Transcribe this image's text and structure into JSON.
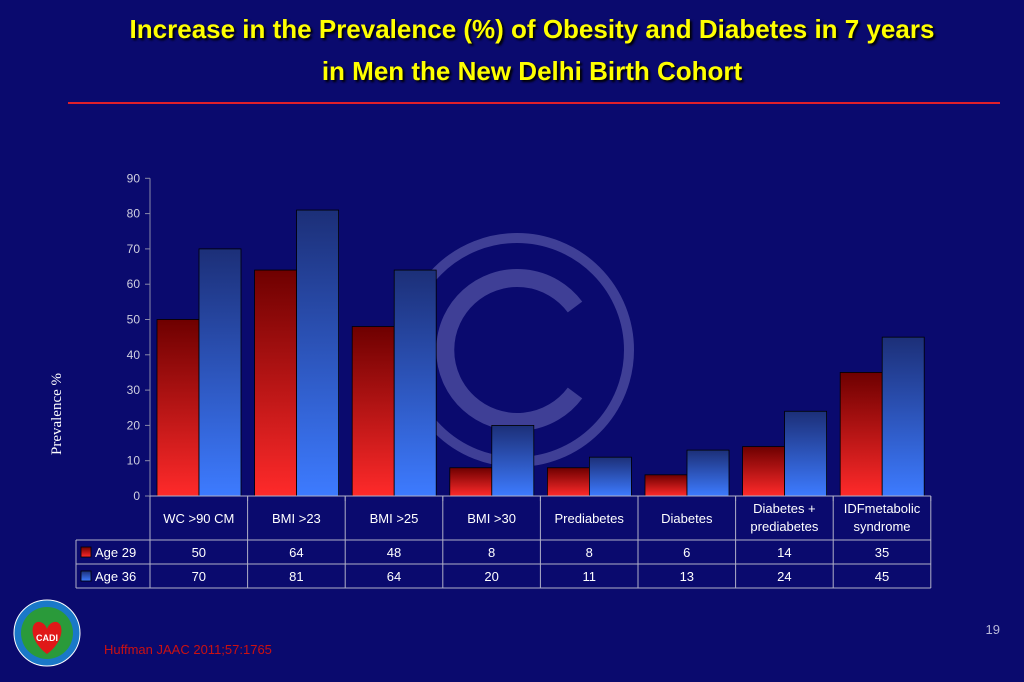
{
  "slide": {
    "title_line1": "Increase in the Prevalence (%) of Obesity and Diabetes  in 7 years",
    "title_line2": "in Men the New Delhi Birth Cohort",
    "page_number": "19",
    "citation": "Huffman  JAAC 2011;57:1765",
    "logo_text": "CADI"
  },
  "chart_data": {
    "type": "bar",
    "title": "",
    "xlabel": "",
    "ylabel": "Prevalence %",
    "ylim": [
      0,
      90
    ],
    "yticks": [
      0,
      10,
      20,
      30,
      40,
      50,
      60,
      70,
      80,
      90
    ],
    "grid": false,
    "legend": "in data table, left",
    "categories": [
      [
        "WC >90 CM"
      ],
      [
        "BMI >23"
      ],
      [
        "BMI >25"
      ],
      [
        "BMI >30"
      ],
      [
        "Prediabetes"
      ],
      [
        "Diabetes"
      ],
      [
        "Diabetes +",
        "prediabetes"
      ],
      [
        "IDFmetabolic",
        "syndrome"
      ]
    ],
    "series": [
      {
        "name": "Age 29",
        "values": [
          50,
          64,
          48,
          8,
          8,
          6,
          14,
          35
        ],
        "color": "#d01010"
      },
      {
        "name": "Age 36",
        "values": [
          70,
          81,
          64,
          20,
          11,
          13,
          24,
          45
        ],
        "color": "#3366ee"
      }
    ]
  }
}
